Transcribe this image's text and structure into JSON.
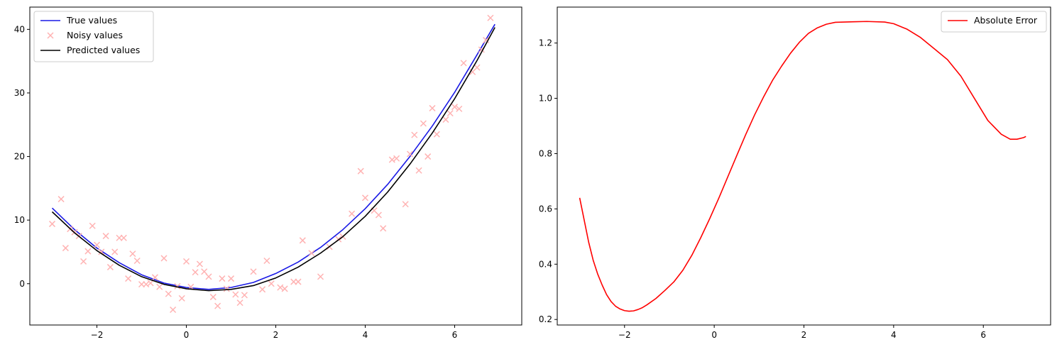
{
  "chart_data": [
    {
      "type": "line",
      "title": "",
      "xlabel": "",
      "ylabel": "",
      "xlim": [
        -3.5,
        7.5
      ],
      "ylim": [
        -6.5,
        43.5
      ],
      "xticks": [
        -2,
        0,
        2,
        4,
        6
      ],
      "yticks": [
        0,
        10,
        20,
        30,
        40
      ],
      "grid": false,
      "legend_position": "top-left",
      "series": [
        {
          "name": "True values",
          "kind": "line",
          "color": "#1a1ae6",
          "x": [
            -3.0,
            -2.5,
            -2.0,
            -1.5,
            -1.0,
            -0.5,
            0.0,
            0.5,
            1.0,
            1.5,
            2.0,
            2.5,
            3.0,
            3.5,
            4.0,
            4.5,
            5.0,
            5.5,
            6.0,
            6.5,
            6.9
          ],
          "y": [
            11.9,
            8.5,
            5.6,
            3.3,
            1.4,
            0.1,
            -0.6,
            -0.9,
            -0.6,
            0.2,
            1.6,
            3.4,
            5.7,
            8.5,
            11.8,
            15.6,
            20.0,
            24.8,
            30.1,
            36.0,
            40.8
          ]
        },
        {
          "name": "Noisy values",
          "kind": "scatter",
          "color": "#ffb3b3",
          "x": [
            -3.0,
            -2.8,
            -2.7,
            -2.6,
            -2.5,
            -2.4,
            -2.3,
            -2.2,
            -2.1,
            -2.0,
            -1.9,
            -1.8,
            -1.7,
            -1.6,
            -1.5,
            -1.4,
            -1.3,
            -1.2,
            -1.1,
            -1.0,
            -0.9,
            -0.8,
            -0.7,
            -0.6,
            -0.5,
            -0.4,
            -0.3,
            -0.2,
            -0.1,
            0.0,
            0.1,
            0.2,
            0.3,
            0.4,
            0.5,
            0.6,
            0.7,
            0.8,
            0.9,
            1.0,
            1.1,
            1.2,
            1.3,
            1.5,
            1.7,
            1.8,
            1.9,
            2.1,
            2.2,
            2.4,
            2.5,
            2.6,
            2.8,
            3.0,
            3.2,
            3.4,
            3.5,
            3.7,
            3.9,
            4.0,
            4.2,
            4.3,
            4.4,
            4.6,
            4.7,
            4.9,
            5.0,
            5.1,
            5.2,
            5.3,
            5.4,
            5.5,
            5.6,
            5.8,
            5.9,
            6.0,
            6.1,
            6.2,
            6.4,
            6.5,
            6.6,
            6.7,
            6.8
          ],
          "y": [
            9.4,
            13.3,
            5.6,
            8.6,
            8.1,
            7.5,
            3.5,
            5.1,
            9.1,
            6.1,
            5.0,
            7.5,
            2.6,
            5.0,
            7.2,
            7.2,
            0.8,
            4.7,
            3.6,
            -0.1,
            -0.1,
            0.1,
            1.0,
            -0.5,
            4.0,
            -1.6,
            -4.1,
            -0.4,
            -2.3,
            3.5,
            -0.5,
            1.8,
            3.1,
            1.9,
            1.1,
            -2.1,
            -3.5,
            0.8,
            -0.8,
            0.8,
            -1.7,
            -3.0,
            -1.8,
            1.9,
            -0.9,
            3.6,
            0.0,
            -0.6,
            -0.8,
            0.3,
            0.3,
            6.8,
            4.8,
            1.1,
            5.8,
            7.0,
            7.4,
            11.0,
            17.7,
            13.5,
            11.5,
            10.8,
            8.7,
            19.5,
            19.7,
            12.5,
            20.4,
            23.4,
            17.8,
            25.2,
            20.0,
            27.6,
            23.5,
            25.8,
            26.8,
            27.8,
            27.5,
            34.7,
            33.3,
            34.0,
            36.8,
            38.3,
            41.8
          ]
        },
        {
          "name": "Predicted values",
          "kind": "line",
          "color": "#000000",
          "x": [
            -3.0,
            -2.5,
            -2.0,
            -1.5,
            -1.0,
            -0.5,
            0.0,
            0.5,
            1.0,
            1.5,
            2.0,
            2.5,
            3.0,
            3.5,
            4.0,
            4.5,
            5.0,
            5.5,
            6.0,
            6.5,
            6.9
          ],
          "y": [
            11.3,
            8.0,
            5.2,
            2.9,
            1.1,
            -0.1,
            -0.8,
            -1.1,
            -0.9,
            -0.3,
            0.9,
            2.6,
            4.8,
            7.4,
            10.6,
            14.4,
            18.8,
            23.7,
            29.1,
            35.1,
            40.3
          ]
        }
      ]
    },
    {
      "type": "line",
      "title": "",
      "xlabel": "",
      "ylabel": "",
      "xlim": [
        -3.5,
        7.5
      ],
      "ylim": [
        0.18,
        1.33
      ],
      "xticks": [
        -2,
        0,
        2,
        4,
        6
      ],
      "yticks": [
        0.2,
        0.4,
        0.6,
        0.8,
        1.0,
        1.2
      ],
      "ytick_labels": [
        "0.2",
        "0.4",
        "0.6",
        "0.8",
        "1.0",
        "1.2"
      ],
      "grid": false,
      "legend_position": "top-right",
      "series": [
        {
          "name": "Absolute Error",
          "kind": "line",
          "color": "#ff0000",
          "x": [
            -3.0,
            -2.9,
            -2.8,
            -2.7,
            -2.6,
            -2.5,
            -2.4,
            -2.3,
            -2.2,
            -2.1,
            -2.0,
            -1.9,
            -1.8,
            -1.7,
            -1.6,
            -1.5,
            -1.3,
            -1.1,
            -0.9,
            -0.7,
            -0.5,
            -0.3,
            -0.1,
            0.1,
            0.3,
            0.5,
            0.7,
            0.9,
            1.1,
            1.3,
            1.5,
            1.7,
            1.9,
            2.1,
            2.3,
            2.5,
            2.7,
            2.9,
            3.1,
            3.4,
            3.8,
            4.0,
            4.3,
            4.6,
            4.9,
            5.2,
            5.5,
            5.8,
            6.1,
            6.4,
            6.6,
            6.75,
            6.9,
            6.95
          ],
          "y": [
            0.64,
            0.56,
            0.48,
            0.415,
            0.365,
            0.325,
            0.29,
            0.265,
            0.248,
            0.238,
            0.232,
            0.23,
            0.231,
            0.236,
            0.243,
            0.253,
            0.276,
            0.305,
            0.336,
            0.378,
            0.432,
            0.496,
            0.565,
            0.638,
            0.715,
            0.792,
            0.868,
            0.94,
            1.005,
            1.065,
            1.116,
            1.163,
            1.203,
            1.235,
            1.255,
            1.268,
            1.275,
            1.276,
            1.277,
            1.278,
            1.276,
            1.27,
            1.25,
            1.22,
            1.18,
            1.14,
            1.08,
            1.0,
            0.92,
            0.87,
            0.852,
            0.852,
            0.858,
            0.862
          ]
        }
      ]
    }
  ]
}
